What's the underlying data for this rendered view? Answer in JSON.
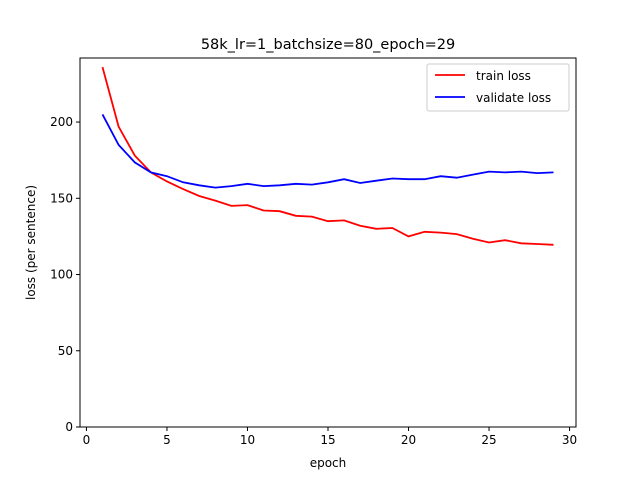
{
  "chart_data": {
    "type": "line",
    "title": "58k_lr=1_batchsize=80_epoch=29",
    "xlabel": "epoch",
    "ylabel": "loss (per sentence)",
    "xlim": [
      -0.4,
      30.4
    ],
    "ylim": [
      0,
      242
    ],
    "xticks": [
      0,
      5,
      10,
      15,
      20,
      25,
      30
    ],
    "yticks": [
      0,
      50,
      100,
      150,
      200
    ],
    "grid": false,
    "legend_position": "top-right",
    "x": [
      1,
      2,
      3,
      4,
      5,
      6,
      7,
      8,
      9,
      10,
      11,
      12,
      13,
      14,
      15,
      16,
      17,
      18,
      19,
      20,
      21,
      22,
      23,
      24,
      25,
      26,
      27,
      28,
      29
    ],
    "series": [
      {
        "name": "train loss",
        "color": "#ff0000",
        "values": [
          236,
          197,
          178,
          167,
          161,
          156,
          151.5,
          148.5,
          145,
          145.5,
          142,
          141.5,
          138.5,
          138,
          135,
          135.5,
          132,
          130,
          130.5,
          125,
          128,
          127.5,
          126.5,
          123.5,
          121,
          122.5,
          120.5,
          120,
          119.5
        ]
      },
      {
        "name": "validate loss",
        "color": "#0000ff",
        "values": [
          205,
          185,
          173.5,
          167,
          164.5,
          160.5,
          158.5,
          157,
          158,
          159.5,
          158,
          158.5,
          159.5,
          159,
          160.5,
          162.5,
          160,
          161.5,
          163,
          162.5,
          162.5,
          164.5,
          163.5,
          165.5,
          167.5,
          167,
          167.5,
          166.5,
          167
        ]
      }
    ]
  }
}
